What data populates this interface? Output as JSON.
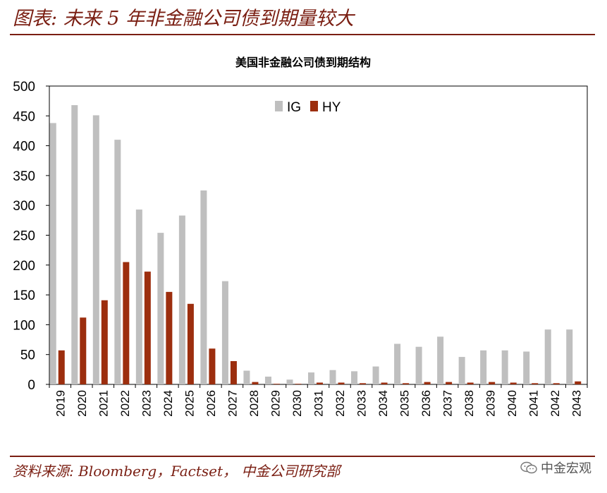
{
  "figure": {
    "title": "图表: 未来 5 年非金融公司债到期量较大",
    "source": "资料来源: Bloomberg，Factset， 中金公司研究部",
    "watermark": "中金宏观",
    "colors": {
      "accent": "#7a1e12",
      "ig": "#bfbfbf",
      "hy": "#9c2e0e"
    },
    "icons": {
      "watermark_icon": "wechat-icon"
    }
  },
  "chart_data": {
    "type": "bar",
    "title": "美国非金融公司债到期结构",
    "xlabel": "",
    "ylabel": "",
    "ylim": [
      0,
      500
    ],
    "yticks": [
      0,
      50,
      100,
      150,
      200,
      250,
      300,
      350,
      400,
      450,
      500
    ],
    "grid": false,
    "legend_position": "top-center",
    "categories": [
      "2019",
      "2020",
      "2021",
      "2022",
      "2023",
      "2024",
      "2025",
      "2026",
      "2027",
      "2028",
      "2029",
      "2030",
      "2031",
      "2032",
      "2033",
      "2034",
      "2035",
      "2036",
      "2037",
      "2038",
      "2039",
      "2040",
      "2041",
      "2042",
      "2043"
    ],
    "series": [
      {
        "name": "IG",
        "color": "#bfbfbf",
        "values": [
          438,
          468,
          451,
          410,
          293,
          254,
          283,
          325,
          173,
          23,
          13,
          8,
          20,
          24,
          22,
          30,
          68,
          63,
          80,
          46,
          57,
          57,
          55,
          92,
          92
        ]
      },
      {
        "name": "HY",
        "color": "#9c2e0e",
        "values": [
          57,
          112,
          141,
          205,
          189,
          155,
          135,
          60,
          39,
          4,
          1,
          1,
          3,
          3,
          2,
          3,
          2,
          4,
          4,
          3,
          4,
          3,
          2,
          2,
          5
        ]
      }
    ]
  }
}
